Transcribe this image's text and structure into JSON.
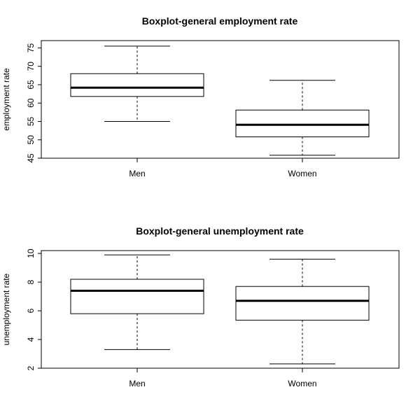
{
  "chart_data": [
    {
      "type": "box",
      "title": "Boxplot-general employment rate",
      "xlabel": "",
      "ylabel": "employment rate",
      "ylim": [
        45,
        77
      ],
      "yticks": [
        45,
        50,
        55,
        60,
        65,
        70,
        75
      ],
      "categories": [
        "Men",
        "Women"
      ],
      "boxes": [
        {
          "category": "Men",
          "min": 55.0,
          "q1": 61.8,
          "median": 64.2,
          "q3": 68.0,
          "max": 75.5
        },
        {
          "category": "Women",
          "min": 45.8,
          "q1": 50.8,
          "median": 54.1,
          "q3": 58.1,
          "max": 66.2
        }
      ],
      "grid": false
    },
    {
      "type": "box",
      "title": "Boxplot-general unemployment rate",
      "xlabel": "",
      "ylabel": "unemployment rate",
      "ylim": [
        2,
        10.2
      ],
      "yticks": [
        2,
        4,
        6,
        8,
        10
      ],
      "categories": [
        "Men",
        "Women"
      ],
      "boxes": [
        {
          "category": "Men",
          "min": 3.3,
          "q1": 5.8,
          "median": 7.4,
          "q3": 8.2,
          "max": 9.9
        },
        {
          "category": "Women",
          "min": 2.3,
          "q1": 5.35,
          "median": 6.7,
          "q3": 7.7,
          "max": 9.6
        }
      ],
      "grid": false
    }
  ]
}
